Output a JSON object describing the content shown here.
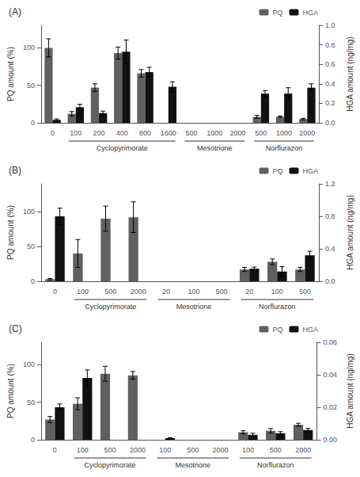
{
  "chart_data": [
    {
      "type": "bar",
      "title": "(A)",
      "ylabel": "PQ amount (%)",
      "y2label": "HGA amount (ng/mg)",
      "categories": [
        "0",
        "100",
        "200",
        "400",
        "800",
        "1600",
        "500",
        "1000",
        "2000",
        "500",
        "1000",
        "2000"
      ],
      "groups": [
        {
          "label": null,
          "size": 1
        },
        {
          "label": "Cyclopyrimorate",
          "size": 5
        },
        {
          "label": "Mesotrione",
          "size": 3
        },
        {
          "label": "Norflurazon",
          "size": 3
        }
      ],
      "series": [
        {
          "name": "PQ",
          "color": "#606060",
          "values": [
            100,
            12,
            47,
            93,
            66,
            null,
            null,
            null,
            null,
            8,
            8,
            5
          ],
          "errors": [
            12,
            3,
            5,
            8,
            5,
            null,
            null,
            null,
            null,
            2,
            1,
            1
          ]
        },
        {
          "name": "HGA",
          "color": "#111111",
          "axis": "y2",
          "values": [
            0.03,
            0.16,
            0.1,
            0.73,
            0.52,
            0.37,
            null,
            null,
            null,
            0.3,
            0.3,
            0.36
          ],
          "errors": [
            0.01,
            0.03,
            0.02,
            0.12,
            0.05,
            0.05,
            null,
            null,
            null,
            0.03,
            0.06,
            0.04
          ]
        }
      ],
      "ylim": [
        0,
        130
      ],
      "yticks": [
        0,
        50,
        100
      ],
      "y2lim": [
        0,
        1.0
      ],
      "y2ticks": [
        {
          "value": 0,
          "label": "0.0"
        },
        0.2,
        0.4,
        0.6,
        0.8,
        {
          "value": 1.0,
          "label": "1.0"
        }
      ],
      "legend": "upper right",
      "grid": false
    },
    {
      "type": "bar",
      "title": "(B)",
      "ylabel": "PQ amount (%)",
      "y2label": "HGA amount (ng/mg)",
      "categories": [
        "0",
        "100",
        "500",
        "2000",
        "20",
        "100",
        "500",
        "20",
        "100",
        "500"
      ],
      "groups": [
        {
          "label": null,
          "size": 1
        },
        {
          "label": "Cyclopyrimorate",
          "size": 3
        },
        {
          "label": "Mesotrione",
          "size": 3
        },
        {
          "label": "Norflurazon",
          "size": 3
        }
      ],
      "series": [
        {
          "name": "PQ",
          "color": "#606060",
          "values": [
            3,
            40,
            90,
            92,
            null,
            null,
            null,
            17,
            28,
            17
          ],
          "errors": [
            1,
            20,
            18,
            22,
            null,
            null,
            null,
            3,
            4,
            3
          ]
        },
        {
          "name": "HGA",
          "color": "#111111",
          "axis": "y2",
          "values": [
            0.8,
            null,
            null,
            null,
            null,
            null,
            null,
            0.155,
            0.12,
            0.32
          ],
          "errors": [
            0.1,
            null,
            null,
            null,
            null,
            null,
            null,
            0.02,
            0.06,
            0.05
          ]
        }
      ],
      "ylim": [
        0,
        140
      ],
      "yticks": [
        0,
        50,
        100
      ],
      "y2lim": [
        0,
        1.2
      ],
      "y2ticks": [
        {
          "value": 0,
          "label": "0.0"
        },
        0.4,
        0.8,
        1.2
      ],
      "legend": "upper right",
      "grid": false
    },
    {
      "type": "bar",
      "title": "(C)",
      "ylabel": "PQ amount (%)",
      "y2label": "HGA amount (ng/mg)",
      "categories": [
        "0",
        "100",
        "500",
        "2000",
        "100",
        "500",
        "2000",
        "100",
        "500",
        "2000"
      ],
      "groups": [
        {
          "label": null,
          "size": 1
        },
        {
          "label": "Cyclopyrimorate",
          "size": 3
        },
        {
          "label": "Mesotrione",
          "size": 3
        },
        {
          "label": "Norflurazon",
          "size": 3
        }
      ],
      "series": [
        {
          "name": "PQ",
          "color": "#606060",
          "values": [
            27,
            48,
            88,
            86,
            null,
            null,
            null,
            10,
            12,
            20
          ],
          "errors": [
            4,
            8,
            10,
            5,
            null,
            null,
            null,
            2,
            3,
            2
          ]
        },
        {
          "name": "HGA",
          "color": "#111111",
          "axis": "y2",
          "values": [
            0.02,
            0.038,
            null,
            null,
            0.001,
            null,
            null,
            0.003,
            0.004,
            0.006
          ],
          "errors": [
            0.002,
            0.005,
            null,
            null,
            0.0002,
            null,
            null,
            0.001,
            0.001,
            0.001
          ]
        }
      ],
      "ylim": [
        0,
        130
      ],
      "yticks": [
        0,
        50,
        100
      ],
      "y2lim": [
        0,
        0.06
      ],
      "y2ticks": [
        {
          "value": 0,
          "label": "0.00"
        },
        {
          "value": 0.02,
          "label": "0.02"
        },
        {
          "value": 0.04,
          "label": "0.04"
        },
        {
          "value": 0.06,
          "label": "0.06"
        }
      ],
      "legend": "upper right",
      "grid": false
    }
  ]
}
